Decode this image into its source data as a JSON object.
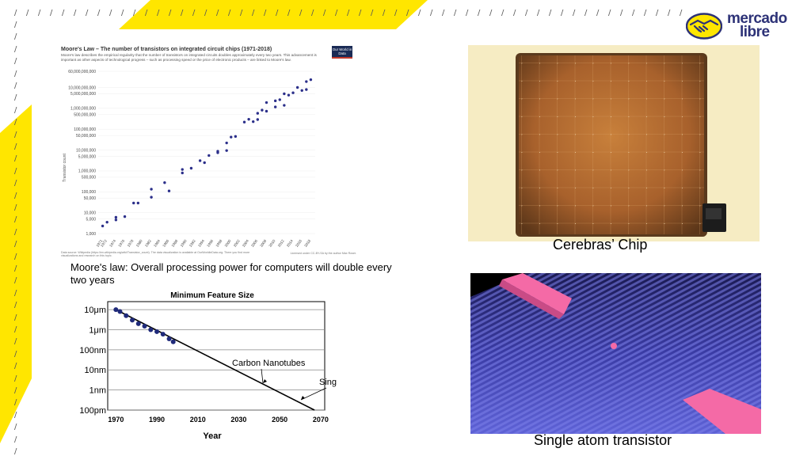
{
  "logo": {
    "line1": "mercado",
    "line2": "libre",
    "color": "#2d3277",
    "accent": "#ffe600"
  },
  "moores_law": {
    "title": "Moore's Law – The number of transistors on integrated circuit chips (1971-2018)",
    "description": "Moore's law describes the empirical regularity that the number of transistors on integrated circuits doubles approximately every two years. This advancement is important as other aspects of technological progress – such as processing speed or the price of electronic products – are linked to Moore's law.",
    "badge": "Our World in Data",
    "ylabel": "Transistor count",
    "source": "Data source: Wikipedia (https://en.wikipedia.org/wiki/Transistor_count). The data visualization is available at OurWorldinData.org. There you find more visualizations and research on this topic.",
    "license": "Licensed under CC-BY-SA by the author Max Roser.",
    "caption": "Moore's law: Overall processing power for computers will double every two years"
  },
  "chart_data": [
    {
      "type": "scatter",
      "title": "Moore's Law – The number of transistors on integrated circuit chips (1971-2018)",
      "ylabel": "Transistor count",
      "scale": "log",
      "yticks": [
        "60,000,000,000",
        "10,000,000,000",
        "5,000,000,000",
        "1,000,000,000",
        "500,000,000",
        "100,000,000",
        "50,000,000",
        "10,000,000",
        "5,000,000",
        "1,000,000",
        "500,000",
        "100,000",
        "50,000",
        "10,000",
        "5,000",
        "1,000"
      ],
      "xticks": [
        "1971",
        "1972",
        "1974",
        "1976",
        "1978",
        "1980",
        "1982",
        "1984",
        "1986",
        "1988",
        "1990",
        "1992",
        "1994",
        "1996",
        "1998",
        "2000",
        "2002",
        "2004",
        "2006",
        "2008",
        "2010",
        "2012",
        "2014",
        "2016",
        "2018"
      ],
      "x": [
        1971,
        1972,
        1974,
        1974,
        1976,
        1978,
        1979,
        1982,
        1982,
        1985,
        1986,
        1989,
        1989,
        1991,
        1993,
        1994,
        1995,
        1997,
        1997,
        1999,
        1999,
        2000,
        2001,
        2003,
        2004,
        2005,
        2006,
        2006,
        2007,
        2008,
        2008,
        2010,
        2010,
        2011,
        2012,
        2012,
        2013,
        2014,
        2015,
        2016,
        2017,
        2017,
        2018
      ],
      "y": [
        2300,
        3500,
        4500,
        6000,
        6500,
        29000,
        29000,
        134000,
        55000,
        275000,
        110000,
        1180000,
        800000,
        1350000,
        3100000,
        2500000,
        5500000,
        7500000,
        8800000,
        9500000,
        22000000,
        42000000,
        45000000,
        220000000,
        300000000,
        230000000,
        291000000,
        580000000,
        820000000,
        731000000,
        1900000000,
        2300000000,
        1170000000,
        2600000000,
        1400000000,
        5000000000,
        4300000000,
        5560000000,
        10000000000,
        7200000000,
        19200000000,
        8000000000,
        23600000000
      ],
      "xlim": [
        1970,
        2019
      ],
      "ylim": [
        1000,
        60000000000
      ]
    },
    {
      "type": "line",
      "title": "Minimum Feature Size",
      "xlabel": "Year",
      "ylabel": "",
      "xticks": [
        "1970",
        "1990",
        "2010",
        "2030",
        "2050",
        "2070"
      ],
      "yticks": [
        "10μm",
        "1μm",
        "100nm",
        "10nm",
        "1nm",
        "100pm"
      ],
      "scale": "log",
      "xlim": [
        1966,
        2072
      ],
      "ylim": [
        1e-10,
        2.5e-05
      ],
      "series": [
        {
          "x": [
            1970,
            1972,
            1975,
            1978,
            1981,
            1984,
            1987,
            1990,
            1993,
            1996,
            1998
          ],
          "y": [
            1e-05,
            8e-06,
            5e-06,
            3e-06,
            2e-06,
            1.5e-06,
            1e-06,
            8e-07,
            6e-07,
            3.5e-07,
            2.5e-07
          ]
        },
        {
          "x": [
            1970,
            2067
          ],
          "y": [
            1e-05,
            1e-10
          ]
        }
      ],
      "annotations": [
        {
          "text": "Carbon Nanotubes",
          "x": 2047,
          "y": 5e-09
        },
        {
          "text": "Single Atom!",
          "x": 2060,
          "y": 3e-10
        }
      ]
    }
  ],
  "cerebras": {
    "caption": "Cerebras’ Chip"
  },
  "atom": {
    "caption": "Single atom transistor"
  }
}
